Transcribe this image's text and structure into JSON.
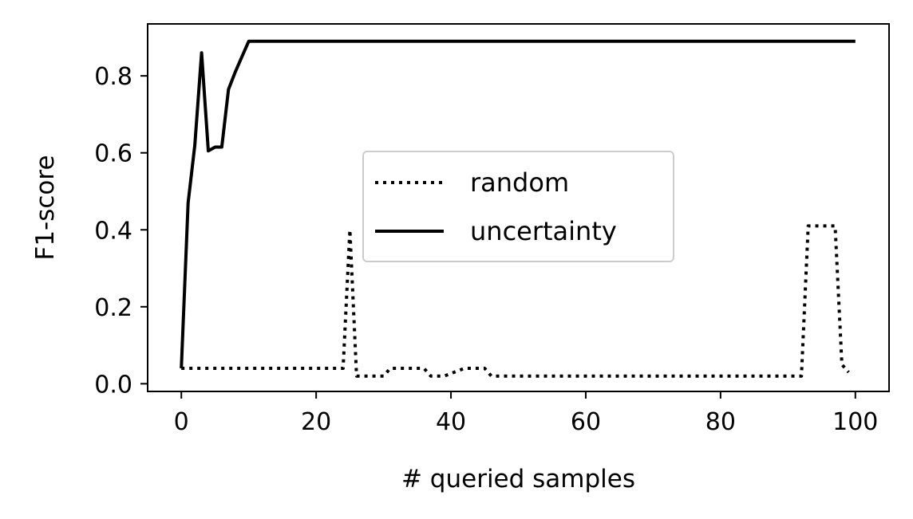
{
  "chart_data": {
    "type": "line",
    "xlabel": "# queried samples",
    "ylabel": "F1-score",
    "xlim": [
      -5,
      105
    ],
    "ylim": [
      -0.02,
      0.935
    ],
    "xticks": [
      0,
      20,
      40,
      60,
      80,
      100
    ],
    "yticks": [
      0.0,
      0.2,
      0.4,
      0.6,
      0.8
    ],
    "xtick_labels": [
      "0",
      "20",
      "40",
      "60",
      "80",
      "100"
    ],
    "ytick_labels": [
      "0.0",
      "0.2",
      "0.4",
      "0.6",
      "0.8"
    ],
    "grid": false,
    "legend": {
      "placement": "center"
    },
    "series": [
      {
        "name": "random",
        "style": "dotted",
        "color": "#000000",
        "points": [
          [
            0,
            0.04
          ],
          [
            24,
            0.04
          ],
          [
            25,
            0.4
          ],
          [
            26,
            0.02
          ],
          [
            30,
            0.02
          ],
          [
            31,
            0.04
          ],
          [
            36,
            0.04
          ],
          [
            37,
            0.02
          ],
          [
            39,
            0.02
          ],
          [
            42,
            0.04
          ],
          [
            45,
            0.04
          ],
          [
            46,
            0.02
          ],
          [
            92,
            0.02
          ],
          [
            93,
            0.41
          ],
          [
            97,
            0.41
          ],
          [
            98,
            0.05
          ],
          [
            99,
            0.03
          ]
        ]
      },
      {
        "name": "uncertainty",
        "style": "solid",
        "color": "#000000",
        "points": [
          [
            0,
            0.04
          ],
          [
            1,
            0.47
          ],
          [
            2,
            0.62
          ],
          [
            3,
            0.86
          ],
          [
            4,
            0.605
          ],
          [
            5,
            0.615
          ],
          [
            6,
            0.615
          ],
          [
            7,
            0.765
          ],
          [
            8,
            0.81
          ],
          [
            9,
            0.85
          ],
          [
            10,
            0.89
          ],
          [
            100,
            0.89
          ]
        ]
      }
    ]
  }
}
